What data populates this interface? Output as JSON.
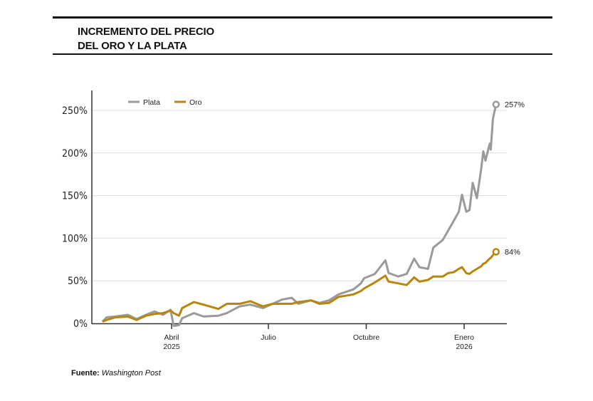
{
  "chart_data": {
    "type": "line",
    "title": "INCREMENTO DEL PRECIO DEL ORO Y LA PLATA",
    "title_lines": [
      "INCREMENTO DEL PRECIO",
      "DEL ORO Y LA PLATA"
    ],
    "xlabel": "",
    "ylabel": "",
    "ylim": [
      0,
      270
    ],
    "yticks": [
      0,
      50,
      100,
      150,
      200,
      250
    ],
    "ytick_labels": [
      "0%",
      "50%",
      "100%",
      "150%",
      "200%",
      "250%"
    ],
    "xlim": [
      "2025-01-20",
      "2026-02-02"
    ],
    "xticks": [
      {
        "date": "2025-04-01",
        "label": "Abril",
        "sublabel": "2025"
      },
      {
        "date": "2025-07-01",
        "label": "Julio",
        "sublabel": ""
      },
      {
        "date": "2025-10-01",
        "label": "Octubre",
        "sublabel": ""
      },
      {
        "date": "2026-01-01",
        "label": "Enero",
        "sublabel": "2026"
      }
    ],
    "grid": true,
    "legend_position": "top-left",
    "x": [
      "2025-01-26",
      "2025-01-30",
      "2025-02-07",
      "2025-02-19",
      "2025-02-27",
      "2025-03-08",
      "2025-03-16",
      "2025-03-24",
      "2025-03-31",
      "2025-04-03",
      "2025-04-08",
      "2025-04-11",
      "2025-04-22",
      "2025-05-01",
      "2025-05-15",
      "2025-05-23",
      "2025-06-04",
      "2025-06-14",
      "2025-06-26",
      "2025-07-05",
      "2025-07-14",
      "2025-07-23",
      "2025-07-29",
      "2025-08-10",
      "2025-08-18",
      "2025-08-27",
      "2025-09-05",
      "2025-09-19",
      "2025-09-26",
      "2025-09-29",
      "2025-10-09",
      "2025-10-19",
      "2025-10-22",
      "2025-10-31",
      "2025-11-08",
      "2025-11-15",
      "2025-11-20",
      "2025-11-28",
      "2025-12-03",
      "2025-12-12",
      "2025-12-17",
      "2025-12-22",
      "2025-12-27",
      "2025-12-30",
      "2026-01-03",
      "2026-01-06",
      "2026-01-09",
      "2026-01-13",
      "2026-01-17",
      "2026-01-19",
      "2026-01-21",
      "2026-01-25",
      "2026-01-26",
      "2026-01-28",
      "2026-01-31"
    ],
    "series": [
      {
        "name": "Plata",
        "color": "#9a9a9a",
        "end_label": "257%",
        "values": [
          2,
          7,
          8,
          10,
          5,
          10,
          14,
          10,
          16,
          -3,
          -2,
          6,
          12,
          8,
          9,
          12,
          20,
          22,
          18,
          23,
          28,
          30,
          23,
          27,
          24,
          27,
          34,
          40,
          47,
          53,
          58,
          74,
          59,
          55,
          58,
          76,
          66,
          64,
          89,
          98,
          109,
          120,
          131,
          151,
          131,
          133,
          165,
          147,
          181,
          202,
          191,
          211,
          204,
          240,
          257
        ]
      },
      {
        "name": "Oro",
        "color": "#b8860b",
        "end_label": "84%",
        "values": [
          2,
          4,
          7,
          8,
          4,
          9,
          11,
          12,
          15,
          12,
          9,
          18,
          25,
          22,
          17,
          23,
          23,
          26,
          20,
          23,
          23,
          23,
          25,
          27,
          23,
          24,
          31,
          34,
          38,
          41,
          48,
          56,
          49,
          47,
          45,
          54,
          49,
          51,
          55,
          55,
          59,
          60,
          64,
          66,
          59,
          58,
          61,
          64,
          67,
          70,
          71,
          76,
          77,
          80,
          84
        ]
      }
    ]
  },
  "source": {
    "label": "Fuente:",
    "name": "Washington Post"
  }
}
